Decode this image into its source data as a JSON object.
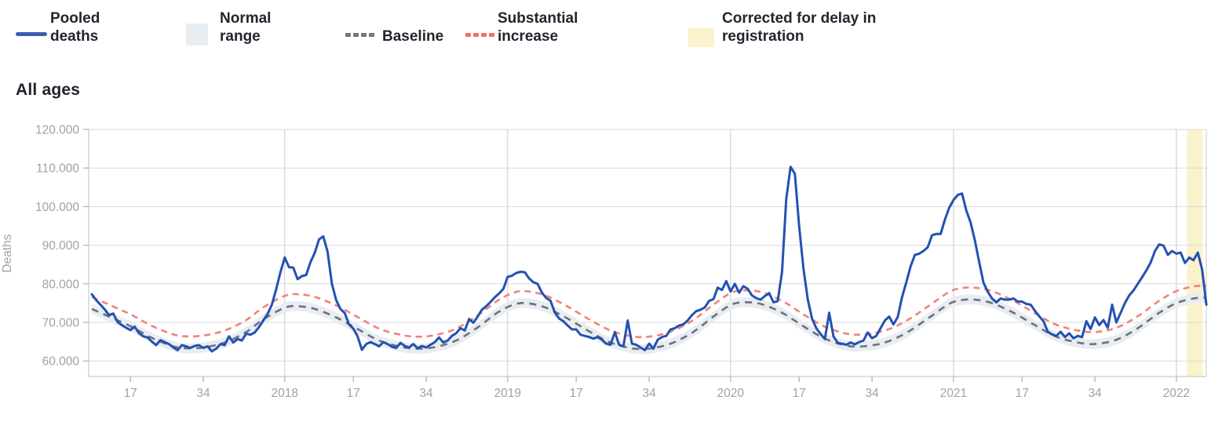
{
  "title": "All ages",
  "legend": {
    "items": [
      {
        "key": "pooled-deaths",
        "label_lines": [
          "Pooled",
          "deaths"
        ],
        "swatch": "line",
        "color": "#3a5dae"
      },
      {
        "key": "normal-range",
        "label_lines": [
          "Normal",
          "range"
        ],
        "swatch": "box",
        "color": "#e8edf2"
      },
      {
        "key": "baseline",
        "label_lines": [
          "Baseline"
        ],
        "swatch": "dashes",
        "color": "#75757e"
      },
      {
        "key": "substantial-increase",
        "label_lines": [
          "Substantial",
          "increase"
        ],
        "swatch": "dashes",
        "color": "#f0726b"
      },
      {
        "key": "corrected-registration",
        "label_lines": [
          "Corrected for delay in",
          "registration"
        ],
        "swatch": "box",
        "color": "#f9f2cb"
      }
    ]
  },
  "chart_data": {
    "type": "line",
    "title": "All ages",
    "ylabel": "Deaths",
    "ylim": [
      60000,
      120000
    ],
    "grid": true,
    "legend_position": "top",
    "y_ticks": [
      {
        "value": 120,
        "label": "120.000"
      },
      {
        "value": 110,
        "label": "110.000"
      },
      {
        "value": 100,
        "label": "100.000"
      },
      {
        "value": 90,
        "label": "90.000"
      },
      {
        "value": 80,
        "label": "80.000"
      },
      {
        "value": 70,
        "label": "70.000"
      },
      {
        "value": 60,
        "label": "60.000"
      }
    ],
    "x_axis_note": "weekly data, index 0 = 2017 week 8; year ticks mark week 1",
    "x_ticks": [
      {
        "idx": 9,
        "label": "17",
        "year_line": false
      },
      {
        "idx": 26,
        "label": "34",
        "year_line": false
      },
      {
        "idx": 45,
        "label": "2018",
        "year_line": true
      },
      {
        "idx": 61,
        "label": "17",
        "year_line": false
      },
      {
        "idx": 78,
        "label": "34",
        "year_line": false
      },
      {
        "idx": 97,
        "label": "2019",
        "year_line": true
      },
      {
        "idx": 113,
        "label": "17",
        "year_line": false
      },
      {
        "idx": 130,
        "label": "34",
        "year_line": false
      },
      {
        "idx": 149,
        "label": "2020",
        "year_line": true
      },
      {
        "idx": 165,
        "label": "17",
        "year_line": false
      },
      {
        "idx": 182,
        "label": "34",
        "year_line": false
      },
      {
        "idx": 201,
        "label": "2021",
        "year_line": true
      },
      {
        "idx": 217,
        "label": "17",
        "year_line": false
      },
      {
        "idx": 234,
        "label": "34",
        "year_line": false
      },
      {
        "idx": 253,
        "label": "2022",
        "year_line": true
      }
    ],
    "series": [
      {
        "name": "Pooled deaths",
        "unit": "thousand deaths per week",
        "color": "#2351b2",
        "values": [
          77.3,
          75.8,
          74.6,
          73.4,
          71.9,
          72.3,
          70.1,
          69.3,
          68.6,
          68.0,
          68.9,
          67.2,
          66.4,
          66.1,
          65.0,
          64.1,
          65.4,
          64.9,
          64.4,
          63.5,
          62.8,
          64.1,
          63.8,
          63.4,
          63.9,
          64.1,
          63.4,
          63.8,
          62.5,
          63.2,
          64.4,
          64.1,
          66.4,
          64.8,
          65.7,
          65.3,
          67.1,
          66.8,
          67.4,
          68.8,
          70.5,
          72.2,
          74.6,
          78.6,
          83.0,
          86.8,
          84.3,
          84.2,
          81.2,
          82.0,
          82.3,
          85.6,
          88.0,
          91.5,
          92.3,
          88.3,
          80.0,
          75.8,
          73.5,
          72.4,
          69.5,
          68.4,
          66.4,
          62.9,
          64.4,
          64.9,
          64.4,
          63.8,
          64.9,
          64.4,
          63.7,
          63.4,
          64.7,
          63.9,
          63.5,
          64.4,
          63.3,
          63.9,
          63.5,
          64.2,
          64.9,
          66.1,
          64.8,
          65.3,
          66.5,
          67.2,
          68.5,
          67.9,
          70.9,
          69.9,
          71.5,
          73.3,
          74.2,
          75.3,
          76.5,
          77.5,
          78.7,
          81.8,
          82.1,
          82.8,
          83.1,
          83.0,
          81.4,
          80.4,
          80.0,
          77.7,
          76.3,
          75.6,
          72.6,
          71.0,
          70.3,
          69.2,
          68.2,
          68.2,
          66.8,
          66.5,
          66.2,
          65.8,
          66.2,
          65.5,
          64.5,
          64.2,
          67.5,
          64.2,
          63.8,
          70.5,
          64.5,
          64.2,
          63.5,
          62.8,
          64.5,
          63.2,
          65.5,
          66.2,
          66.5,
          68.2,
          68.5,
          69.2,
          69.5,
          70.5,
          71.9,
          72.9,
          73.3,
          73.9,
          75.6,
          76.0,
          79.0,
          78.4,
          80.7,
          78.0,
          80.0,
          77.7,
          79.4,
          78.7,
          77.0,
          76.3,
          75.9,
          76.8,
          77.6,
          75.2,
          75.5,
          83.0,
          102.0,
          110.3,
          108.5,
          95.0,
          84.0,
          76.0,
          71.0,
          68.5,
          67.0,
          65.7,
          72.5,
          66.4,
          64.7,
          64.5,
          64.2,
          64.8,
          64.3,
          64.9,
          65.3,
          67.4,
          65.9,
          66.5,
          68.5,
          70.5,
          71.5,
          69.5,
          71.4,
          76.5,
          80.4,
          84.5,
          87.5,
          87.8,
          88.5,
          89.5,
          92.6,
          92.9,
          92.9,
          96.6,
          99.7,
          101.7,
          103.0,
          103.4,
          99.0,
          95.9,
          91.2,
          85.7,
          80.3,
          77.9,
          76.2,
          75.2,
          76.2,
          75.9,
          75.9,
          76.2,
          75.4,
          75.4,
          74.8,
          74.6,
          73.0,
          71.6,
          70.3,
          67.6,
          66.9,
          66.5,
          67.6,
          66.2,
          67.2,
          65.9,
          66.5,
          66.2,
          70.3,
          68.3,
          71.3,
          69.3,
          70.6,
          68.6,
          74.6,
          70.0,
          72.5,
          75.0,
          77.0,
          78.3,
          80.0,
          81.7,
          83.5,
          85.5,
          88.5,
          90.2,
          89.9,
          87.5,
          88.5,
          87.8,
          88.1,
          85.4,
          86.8,
          86.1,
          88.1,
          83.7,
          74.6
        ]
      },
      {
        "name": "Baseline",
        "unit": "thousand deaths per week",
        "color": "#70707a",
        "style": "dashed",
        "control_points": [
          [
            0,
            73.5
          ],
          [
            4,
            71.5
          ],
          [
            9,
            69.0
          ],
          [
            14,
            66.0
          ],
          [
            19,
            63.8
          ],
          [
            22,
            63.3
          ],
          [
            26,
            63.5
          ],
          [
            31,
            64.8
          ],
          [
            36,
            67.5
          ],
          [
            40,
            70.8
          ],
          [
            45,
            73.8
          ],
          [
            48,
            74.2
          ],
          [
            52,
            73.5
          ],
          [
            57,
            71.3
          ],
          [
            62,
            68.3
          ],
          [
            67,
            65.3
          ],
          [
            72,
            63.7
          ],
          [
            76,
            63.2
          ],
          [
            80,
            63.6
          ],
          [
            85,
            65.3
          ],
          [
            90,
            68.7
          ],
          [
            95,
            72.8
          ],
          [
            99,
            74.8
          ],
          [
            102,
            74.9
          ],
          [
            106,
            73.8
          ],
          [
            111,
            71.0
          ],
          [
            116,
            67.7
          ],
          [
            121,
            64.8
          ],
          [
            126,
            63.3
          ],
          [
            130,
            63.2
          ],
          [
            135,
            64.5
          ],
          [
            140,
            67.3
          ],
          [
            145,
            71.5
          ],
          [
            149,
            74.5
          ],
          [
            152,
            75.2
          ],
          [
            156,
            74.8
          ],
          [
            161,
            72.5
          ],
          [
            166,
            69.0
          ],
          [
            171,
            65.8
          ],
          [
            176,
            64.0
          ],
          [
            180,
            63.8
          ],
          [
            185,
            64.8
          ],
          [
            190,
            67.3
          ],
          [
            195,
            71.0
          ],
          [
            200,
            74.8
          ],
          [
            203,
            75.8
          ],
          [
            206,
            75.9
          ],
          [
            210,
            75.0
          ],
          [
            215,
            72.5
          ],
          [
            220,
            69.3
          ],
          [
            225,
            66.3
          ],
          [
            230,
            64.8
          ],
          [
            234,
            64.4
          ],
          [
            239,
            65.5
          ],
          [
            244,
            68.5
          ],
          [
            249,
            72.5
          ],
          [
            253,
            75.0
          ],
          [
            257,
            76.2
          ],
          [
            260,
            76.4
          ]
        ]
      },
      {
        "name": "Substantial increase",
        "color": "#f0827b",
        "style": "dashed",
        "offset_from_baseline": 3.1
      },
      {
        "name": "Normal range",
        "color": "#e8edf2",
        "style": "band",
        "halfwidth_from_baseline": 1.3
      }
    ],
    "corrected_region": {
      "label": "Corrected for delay in registration",
      "color": "#f9f2cb",
      "start_idx": 255.5,
      "end_idx": 259.1
    }
  }
}
